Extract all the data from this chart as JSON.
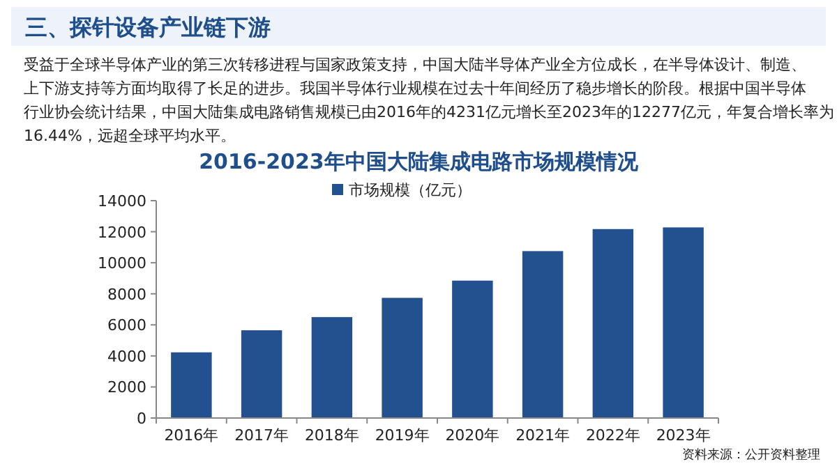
{
  "chart_data": {
    "type": "bar",
    "title": "2016-2023年中国大陆集成电路市场规模情况",
    "annotations": [
      "三、探针设备产业链下游",
      "受益于全球半导体产业的第三次转移进程与国家政策支持，中国大陆半导体产业全方位成长，在半导体设计、制造、上下游支持等方面均取得了长足的进步。我国半导体行业规模在过去十年间经历了稳步增长的阶段。根据中国半导体行业协会统计结果，中国大陆集成电路销售规模已由2016年的4231亿元增长至2023年的12277亿元，年复合增长率为16.44%，远超全球平均水平。",
      "资料来源：公开资料整理"
    ],
    "categories": [
      "2016年",
      "2017年",
      "2018年",
      "2019年",
      "2020年",
      "2021年",
      "2022年",
      "2023年"
    ],
    "series": [
      {
        "name": "市场规模（亿元）",
        "color": "#23508f",
        "values": [
          4231,
          5650,
          6500,
          7740,
          8850,
          10750,
          12170,
          12277
        ]
      }
    ],
    "ylim": [
      0,
      14000
    ],
    "yticks": [
      0,
      2000,
      4000,
      6000,
      8000,
      10000,
      12000,
      14000
    ],
    "grid": false,
    "legend": "top"
  }
}
